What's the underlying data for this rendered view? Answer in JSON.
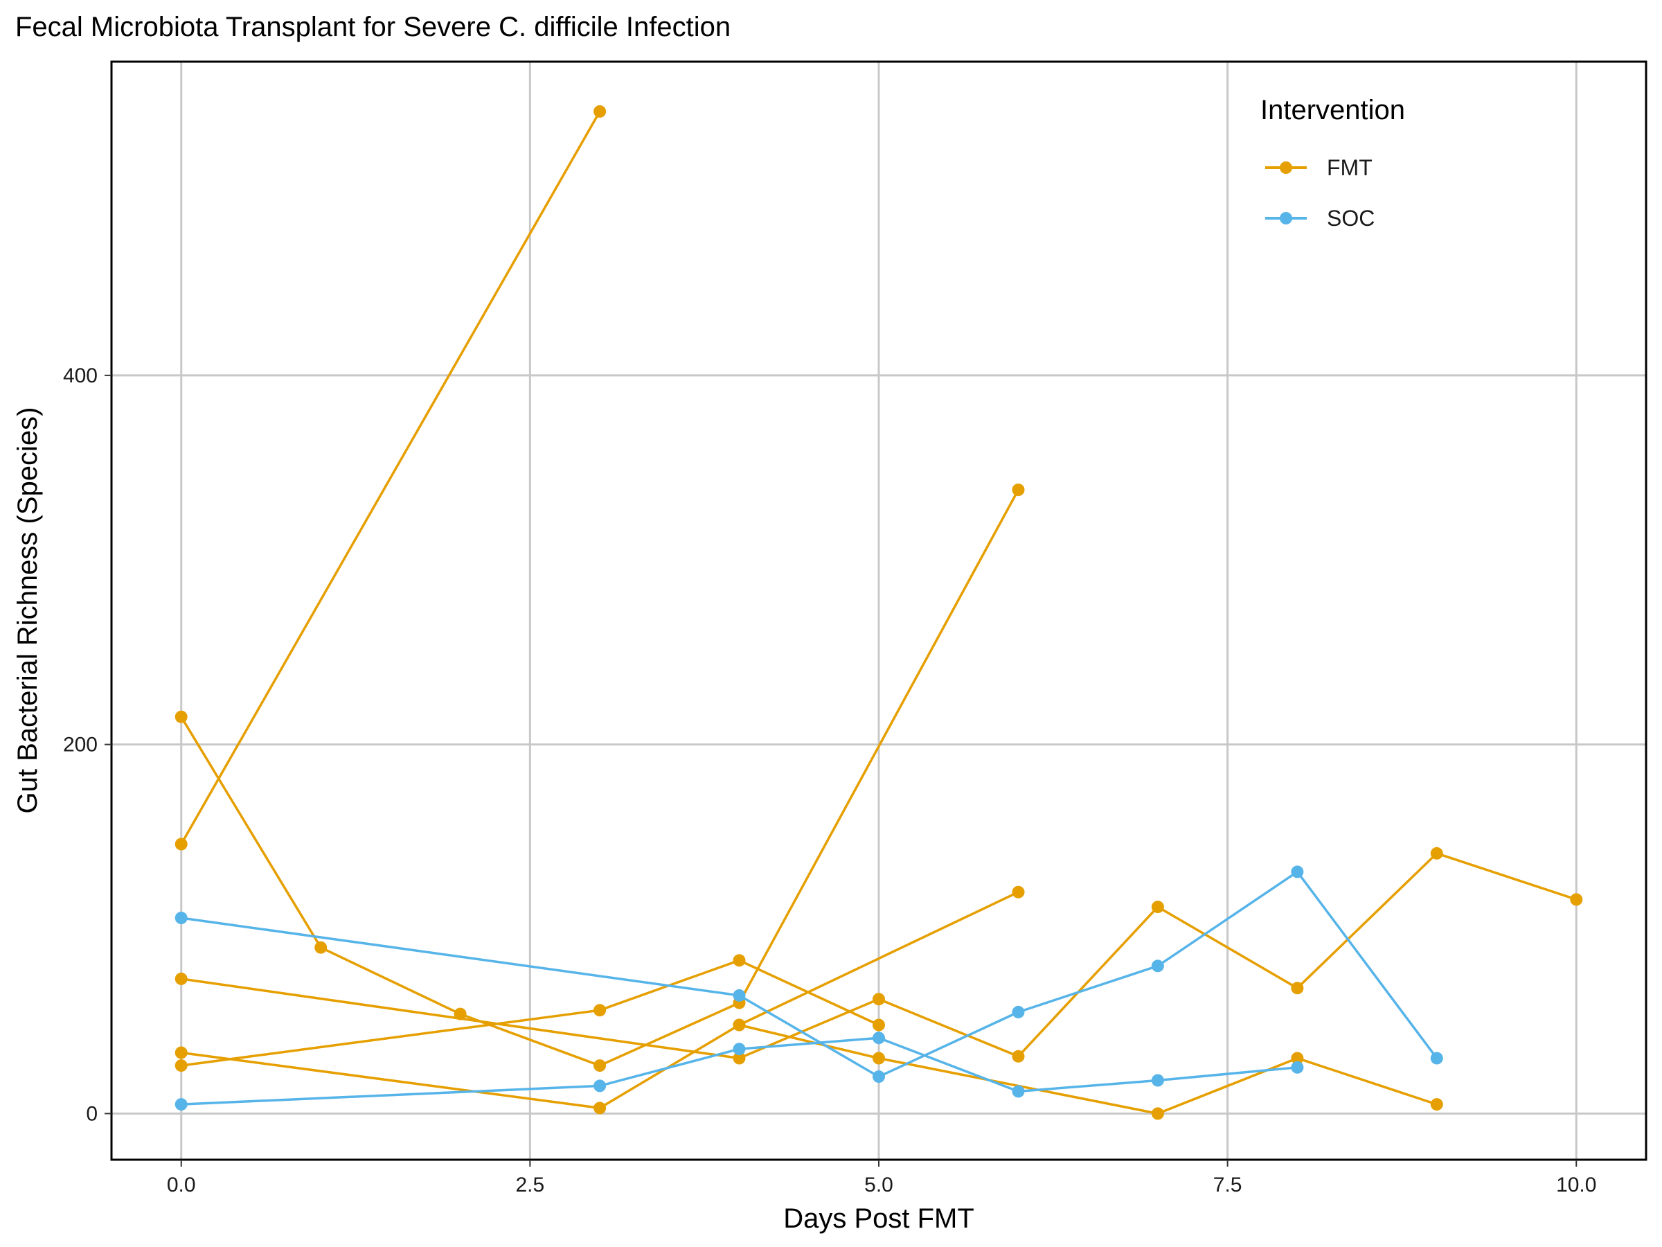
{
  "chart_data": {
    "type": "line",
    "title": "Fecal Microbiota Transplant for Severe C. difficile Infection",
    "xlabel": "Days Post FMT",
    "ylabel": "Gut Bacterial Richness (Species)",
    "xlim": [
      -0.5,
      10.5
    ],
    "ylim": [
      -25,
      570
    ],
    "x_ticks": [
      0,
      2.5,
      5,
      7.5,
      10
    ],
    "x_tick_labels": [
      "0.0",
      "2.5",
      "5.0",
      "7.5",
      "10.0"
    ],
    "y_ticks": [
      0,
      200,
      400
    ],
    "y_tick_labels": [
      "0",
      "200",
      "400"
    ],
    "grid": true,
    "legend": {
      "title": "Intervention",
      "placement": "top-right",
      "entries": [
        {
          "label": "FMT",
          "color": "#E69F00"
        },
        {
          "label": "SOC",
          "color": "#56B4E9"
        }
      ]
    },
    "series": [
      {
        "group": "FMT",
        "color": "#E69F00",
        "points": [
          [
            0,
            146
          ],
          [
            3,
            543
          ]
        ]
      },
      {
        "group": "FMT",
        "color": "#E69F00",
        "points": [
          [
            0,
            215
          ],
          [
            1,
            90
          ],
          [
            2,
            54
          ],
          [
            3,
            26
          ],
          [
            4,
            60
          ],
          [
            6,
            338
          ]
        ]
      },
      {
        "group": "FMT",
        "color": "#E69F00",
        "points": [
          [
            0,
            73
          ],
          [
            4,
            30
          ],
          [
            5,
            62
          ],
          [
            6,
            31
          ],
          [
            7,
            112
          ],
          [
            8,
            68
          ],
          [
            9,
            141
          ],
          [
            10,
            116
          ]
        ]
      },
      {
        "group": "FMT",
        "color": "#E69F00",
        "points": [
          [
            0,
            33
          ],
          [
            3,
            3
          ],
          [
            4,
            48
          ],
          [
            6,
            120
          ]
        ]
      },
      {
        "group": "FMT",
        "color": "#E69F00",
        "points": [
          [
            0,
            26
          ],
          [
            3,
            56
          ],
          [
            4,
            83
          ],
          [
            5,
            48
          ]
        ]
      },
      {
        "group": "FMT",
        "color": "#E69F00",
        "points": [
          [
            4,
            48
          ],
          [
            5,
            30
          ],
          [
            7,
            0
          ],
          [
            8,
            30
          ],
          [
            9,
            5
          ]
        ]
      },
      {
        "group": "SOC",
        "color": "#56B4E9",
        "points": [
          [
            0,
            106
          ],
          [
            4,
            64
          ],
          [
            5,
            20
          ],
          [
            6,
            55
          ],
          [
            7,
            80
          ],
          [
            8,
            131
          ],
          [
            9,
            30
          ]
        ]
      },
      {
        "group": "SOC",
        "color": "#56B4E9",
        "points": [
          [
            0,
            5
          ],
          [
            3,
            15
          ],
          [
            4,
            35
          ],
          [
            5,
            41
          ],
          [
            6,
            12
          ],
          [
            7,
            18
          ],
          [
            8,
            25
          ]
        ]
      }
    ]
  }
}
